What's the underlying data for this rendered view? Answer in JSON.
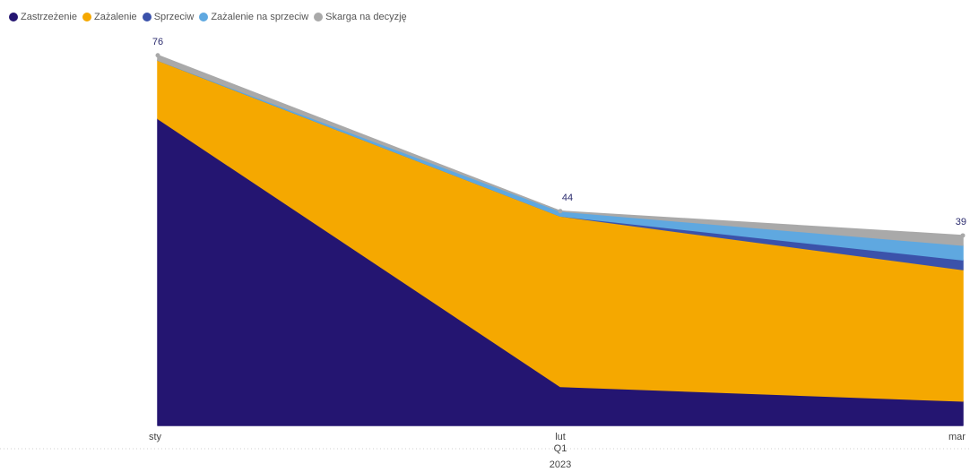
{
  "legend": {
    "items": [
      {
        "label": "Zastrzeżenie",
        "color": "#241571"
      },
      {
        "label": "Zażalenie",
        "color": "#F5A800"
      },
      {
        "label": "Sprzeciw",
        "color": "#3B52AA"
      },
      {
        "label": "Zażalenie na sprzeciw",
        "color": "#5FA8E0"
      },
      {
        "label": "Skarga na decyzję",
        "color": "#A9A9A9"
      }
    ]
  },
  "chart_data": {
    "type": "area",
    "stacked": true,
    "categories": [
      "sty",
      "lut",
      "mar"
    ],
    "x_hierarchy": {
      "quarter": "Q1",
      "year": "2023"
    },
    "ylim": [
      0,
      80
    ],
    "series": [
      {
        "name": "Zastrzeżenie",
        "color": "#241571",
        "values": [
          63,
          8,
          5
        ]
      },
      {
        "name": "Zażalenie",
        "color": "#F5A800",
        "values": [
          12,
          35,
          27
        ]
      },
      {
        "name": "Sprzeciw",
        "color": "#3B52AA",
        "values": [
          0,
          0,
          2
        ]
      },
      {
        "name": "Zażalenie na sprzeciw",
        "color": "#5FA8E0",
        "values": [
          0,
          1,
          3
        ]
      },
      {
        "name": "Skarga na decyzję",
        "color": "#A9A9A9",
        "values": [
          1,
          0,
          2
        ]
      }
    ],
    "totals": [
      76,
      44,
      39
    ],
    "data_labels": [
      "76",
      "44",
      "39"
    ],
    "legend_position": "top-left",
    "grid": false
  }
}
